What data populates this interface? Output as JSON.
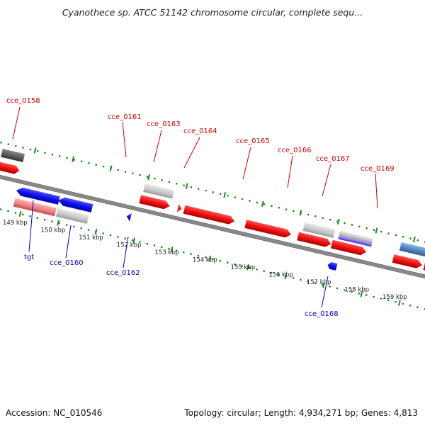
{
  "title": "Cyanothece sp. ATCC 51142 chromosome circular, complete sequ...",
  "footer": {
    "accession": "Accession: NC_010546",
    "summary": "Topology: circular; Length: 4,934,271 bp; Genes: 4,813"
  },
  "scale_ticks": [
    "149 kbp",
    "150 kbp",
    "151 kbp",
    "152 kbp",
    "153 kbp",
    "154 kbp",
    "155 kbp",
    "156 kbp",
    "157 kbp",
    "158 kbp",
    "159 kbp"
  ],
  "top_labels": [
    "cce_0158",
    "cce_0161",
    "cce_0163",
    "cce_0164",
    "cce_0165",
    "cce_0166",
    "cce_0167",
    "cce_0169"
  ],
  "bottom_labels": [
    "tgt",
    "cce_0160",
    "cce_0162",
    "cce_0168"
  ],
  "colors": {
    "forward_gene": "#ee1111",
    "reverse_gene": "#1111ee",
    "top_label": "#cc0000",
    "bottom_label": "#0000bb",
    "dotted_guide": "#228822",
    "backbone": "#888888"
  }
}
